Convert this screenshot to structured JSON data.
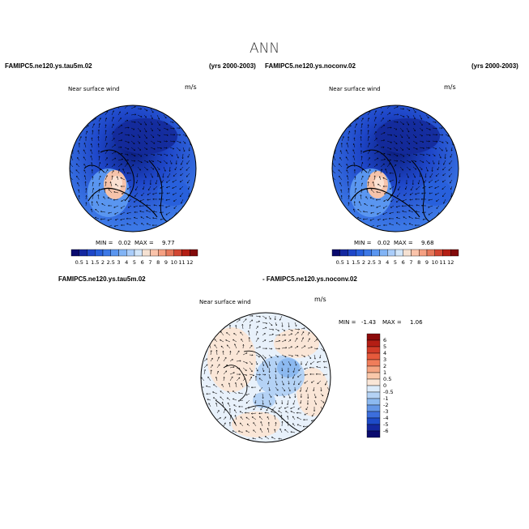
{
  "title": "ANN",
  "panel1": {
    "case": "FAMIPC5.ne120.ys.tau5m.02",
    "years": "(yrs 2000-2003)",
    "field": "Near surface wind",
    "units": "m/s",
    "min_label": "MIN =",
    "min": "0.02",
    "max_label": "MAX =",
    "max": "9.77"
  },
  "panel2": {
    "case": "FAMIPC5.ne120.ys.noconv.02",
    "years": "(yrs 2000-2003)",
    "field": "Near surface wind",
    "units": "m/s",
    "min_label": "MIN =",
    "min": "0.02",
    "max_label": "MAX =",
    "max": "9.68"
  },
  "panel3": {
    "case_a": "FAMIPC5.ne120.ys.tau5m.02",
    "case_b": "- FAMIPC5.ne120.ys.noconv.02",
    "field": "Near surface wind",
    "units": "m/s",
    "min_label": "MIN =",
    "min": "-1.43",
    "max_label": "MAX =",
    "max": "1.06"
  },
  "abs_colorbar": {
    "labels": [
      "0.5",
      "1",
      "1.5",
      "2",
      "2.5",
      "3",
      "4",
      "5",
      "6",
      "7",
      "8",
      "9",
      "10",
      "11",
      "12"
    ],
    "colors": [
      "#0a0a6e",
      "#1428a0",
      "#1e46c8",
      "#2860dc",
      "#3c78e6",
      "#5a96f0",
      "#82b4f5",
      "#aacdfa",
      "#d2e6fa",
      "#f5e1d2",
      "#fac3aa",
      "#f5a082",
      "#e6785a",
      "#d24632",
      "#b41e14",
      "#820a0a"
    ]
  },
  "diff_colorbar": {
    "labels": [
      "6",
      "5",
      "4",
      "3",
      "2",
      "1",
      "0.5",
      "0",
      "-0.5",
      "-1",
      "-2",
      "-3",
      "-4",
      "-5",
      "-6"
    ],
    "colors": [
      "#8c0a0a",
      "#b41e14",
      "#d23c28",
      "#e65a3c",
      "#f07d5a",
      "#f5a582",
      "#fac8aa",
      "#fae6d7",
      "#dcebfa",
      "#b4d2f5",
      "#8cb9f0",
      "#6496e6",
      "#3c6edc",
      "#1e4bc8",
      "#1428a0",
      "#0a0a6e"
    ]
  }
}
